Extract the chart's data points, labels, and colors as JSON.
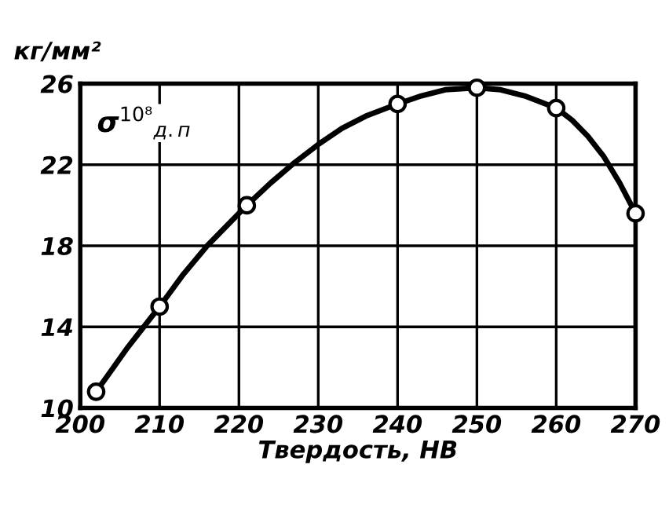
{
  "chart_data": {
    "type": "line",
    "series": [
      {
        "color": "#000000",
        "x": [
          202,
          204,
          206,
          208,
          210,
          213,
          216,
          219,
          221,
          224,
          227,
          230,
          233,
          236,
          240,
          243,
          246,
          250,
          253,
          256,
          260,
          262,
          264,
          266,
          268,
          270
        ],
        "values": [
          10.8,
          11.9,
          13,
          14,
          15,
          16.6,
          18,
          19.2,
          20,
          21.1,
          22.1,
          23,
          23.8,
          24.4,
          25,
          25.4,
          25.7,
          25.8,
          25.7,
          25.4,
          24.8,
          24.2,
          23.4,
          22.4,
          21.1,
          19.6
        ]
      },
      {
        "type": "scatter",
        "color": "#000000",
        "marker": "circle",
        "x": [
          202,
          210,
          221,
          240,
          250,
          260,
          270
        ],
        "values": [
          10.8,
          15,
          20,
          25,
          25.8,
          24.8,
          19.6
        ]
      }
    ],
    "xlabel": "Твердость, НВ",
    "ylabel": "кг/мм²",
    "annotations": [
      "σ$^{10⁸}$$_{д.п}$"
    ],
    "xlim": [
      200,
      270
    ],
    "xticks": [
      200,
      210,
      220,
      230,
      240,
      250,
      260,
      270
    ],
    "ylim": [
      10,
      26
    ],
    "yticks": [
      10,
      14,
      18,
      22,
      26
    ],
    "grid": true,
    "line_style": "solid"
  }
}
